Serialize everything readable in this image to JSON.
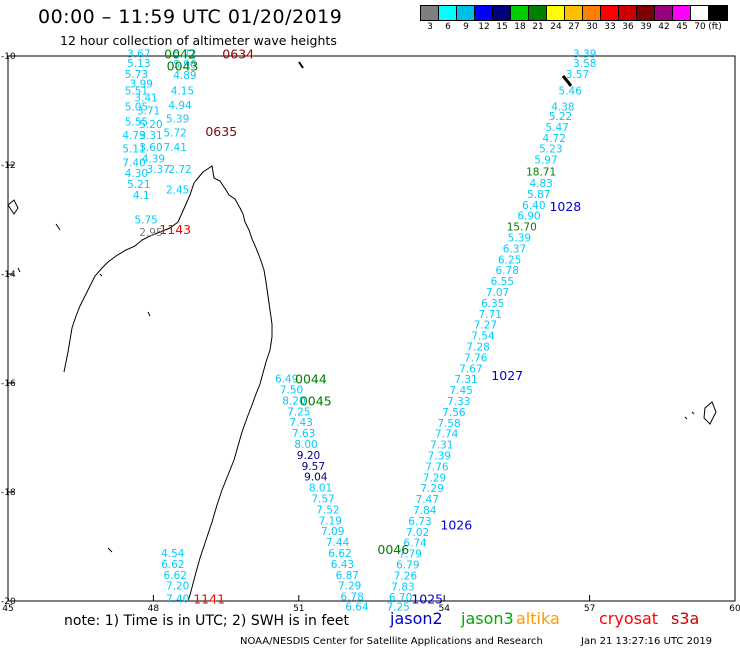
{
  "header": {
    "title": "00:00 – 11:59 UTC 01/20/2019",
    "subtitle": "12 hour collection of altimeter wave heights"
  },
  "colorbar": {
    "unit_label": "(ft)",
    "bins": [
      {
        "color": "#7f7f7f",
        "label": "3"
      },
      {
        "color": "#00ffff",
        "label": "6"
      },
      {
        "color": "#00bfe6",
        "label": "9"
      },
      {
        "color": "#0000ff",
        "label": "12"
      },
      {
        "color": "#00007f",
        "label": "15"
      },
      {
        "color": "#00cc00",
        "label": "18"
      },
      {
        "color": "#007f00",
        "label": "21"
      },
      {
        "color": "#ffff00",
        "label": "24"
      },
      {
        "color": "#ffbf00",
        "label": "27"
      },
      {
        "color": "#ff7f00",
        "label": "30"
      },
      {
        "color": "#ff0000",
        "label": "33"
      },
      {
        "color": "#cc0000",
        "label": "36"
      },
      {
        "color": "#7f0000",
        "label": "39"
      },
      {
        "color": "#99007f",
        "label": "42"
      },
      {
        "color": "#ff00ff",
        "label": "45"
      },
      {
        "color": "#ffffff",
        "label": "70"
      },
      {
        "color": "#000000",
        "label": ""
      }
    ]
  },
  "map": {
    "lat_ticks": [
      "-10",
      "-12",
      "-14",
      "-16",
      "-18",
      "-20"
    ],
    "lon_ticks": [
      "45",
      "48",
      "51",
      "54",
      "57",
      "60"
    ],
    "colors": {
      "cyan": "#00ccff",
      "grey": "#7f7f7f",
      "navy": "#00007f",
      "green": "#007f00",
      "darkred": "#8b0000",
      "red": "#ff0000",
      "blue": "#0000cc",
      "lightgreen": "#00aa00"
    },
    "time_labels": [
      {
        "text": "0042",
        "color": "green",
        "lon": 48.55,
        "lat": -9.95
      },
      {
        "text": "0043",
        "color": "green",
        "lon": 48.6,
        "lat": -10.17
      },
      {
        "text": "0634",
        "color": "darkred",
        "lon": 49.75,
        "lat": -9.95
      },
      {
        "text": "0635",
        "color": "darkred",
        "lon": 49.4,
        "lat": -11.38
      },
      {
        "text": "1143",
        "color": "red",
        "lon": 48.45,
        "lat": -13.17
      },
      {
        "text": "0044",
        "color": "green",
        "lon": 51.25,
        "lat": -15.92
      },
      {
        "text": "0045",
        "color": "green",
        "lon": 51.35,
        "lat": -16.32
      },
      {
        "text": "1028",
        "color": "blue",
        "lon": 56.5,
        "lat": -12.75
      },
      {
        "text": "1027",
        "color": "blue",
        "lon": 55.3,
        "lat": -15.85
      },
      {
        "text": "1026",
        "color": "blue",
        "lon": 54.25,
        "lat": -18.6
      },
      {
        "text": "0046",
        "color": "green",
        "lon": 52.95,
        "lat": -19.05
      },
      {
        "text": "1025",
        "color": "blue",
        "lon": 53.65,
        "lat": -19.95
      },
      {
        "text": "1141",
        "color": "red",
        "lon": 49.15,
        "lat": -19.95
      }
    ],
    "tracks": [
      {
        "color": "cyan",
        "labels": [
          {
            "text": "3.39",
            "lon": 56.9,
            "lat": -9.95
          },
          {
            "text": "3.58",
            "lon": 56.9,
            "lat": -10.13
          },
          {
            "text": "3.57",
            "lon": 56.75,
            "lat": -10.33
          },
          {
            "text": "5.46",
            "lon": 56.6,
            "lat": -10.63
          },
          {
            "text": "4.38",
            "lon": 56.45,
            "lat": -10.93
          },
          {
            "text": "5.22",
            "lon": 56.4,
            "lat": -11.1
          },
          {
            "text": "5.47",
            "lon": 56.33,
            "lat": -11.3
          },
          {
            "text": "4.72",
            "lon": 56.27,
            "lat": -11.5
          },
          {
            "text": "5.23",
            "lon": 56.2,
            "lat": -11.7
          },
          {
            "text": "5.97",
            "lon": 56.1,
            "lat": -11.9
          }
        ]
      },
      {
        "color": "green",
        "labels": [
          {
            "text": "18.71",
            "lon": 56.0,
            "lat": -12.12
          }
        ]
      },
      {
        "color": "cyan",
        "labels": [
          {
            "text": "4.83",
            "lon": 56.0,
            "lat": -12.33
          },
          {
            "text": "5.87",
            "lon": 55.95,
            "lat": -12.53
          },
          {
            "text": "6.40",
            "lon": 55.85,
            "lat": -12.73
          },
          {
            "text": "6.90",
            "lon": 55.75,
            "lat": -12.93
          }
        ]
      },
      {
        "color": "green",
        "labels": [
          {
            "text": "15.70",
            "lon": 55.6,
            "lat": -13.13
          }
        ]
      },
      {
        "color": "cyan",
        "labels": [
          {
            "text": "5.39",
            "lon": 55.55,
            "lat": -13.33
          },
          {
            "text": "6.37",
            "lon": 55.45,
            "lat": -13.53
          },
          {
            "text": "6.25",
            "lon": 55.35,
            "lat": -13.73
          },
          {
            "text": "6.78",
            "lon": 55.3,
            "lat": -13.93
          },
          {
            "text": "6.55",
            "lon": 55.2,
            "lat": -14.13
          },
          {
            "text": "7.07",
            "lon": 55.1,
            "lat": -14.33
          },
          {
            "text": "6.35",
            "lon": 55.0,
            "lat": -14.53
          },
          {
            "text": "7.71",
            "lon": 54.95,
            "lat": -14.73
          },
          {
            "text": "7.27",
            "lon": 54.85,
            "lat": -14.93
          },
          {
            "text": "7.54",
            "lon": 54.8,
            "lat": -15.13
          },
          {
            "text": "7.28",
            "lon": 54.7,
            "lat": -15.33
          },
          {
            "text": "7.76",
            "lon": 54.65,
            "lat": -15.53
          },
          {
            "text": "7.67",
            "lon": 54.55,
            "lat": -15.73
          },
          {
            "text": "7.31",
            "lon": 54.45,
            "lat": -15.93
          },
          {
            "text": "7.45",
            "lon": 54.35,
            "lat": -16.13
          },
          {
            "text": "7.33",
            "lon": 54.3,
            "lat": -16.33
          },
          {
            "text": "7.56",
            "lon": 54.2,
            "lat": -16.53
          },
          {
            "text": "7.58",
            "lon": 54.1,
            "lat": -16.73
          },
          {
            "text": "7.74",
            "lon": 54.05,
            "lat": -16.93
          },
          {
            "text": "7.31",
            "lon": 53.95,
            "lat": -17.13
          },
          {
            "text": "7.39",
            "lon": 53.9,
            "lat": -17.33
          },
          {
            "text": "7.76",
            "lon": 53.85,
            "lat": -17.53
          },
          {
            "text": "7.29",
            "lon": 53.8,
            "lat": -17.73
          },
          {
            "text": "7.29",
            "lon": 53.75,
            "lat": -17.93
          },
          {
            "text": "7.47",
            "lon": 53.65,
            "lat": -18.13
          },
          {
            "text": "7.84",
            "lon": 53.6,
            "lat": -18.33
          },
          {
            "text": "6.73",
            "lon": 53.5,
            "lat": -18.53
          },
          {
            "text": "7.02",
            "lon": 53.45,
            "lat": -18.73
          },
          {
            "text": "6.74",
            "lon": 53.4,
            "lat": -18.93
          },
          {
            "text": "7.79",
            "lon": 53.3,
            "lat": -19.13
          },
          {
            "text": "6.79",
            "lon": 53.25,
            "lat": -19.33
          },
          {
            "text": "7.26",
            "lon": 53.2,
            "lat": -19.53
          },
          {
            "text": "7.83",
            "lon": 53.15,
            "lat": -19.73
          },
          {
            "text": "6.70",
            "lon": 53.1,
            "lat": -19.93
          },
          {
            "text": "7.25",
            "lon": 53.05,
            "lat": -20.1
          }
        ]
      },
      {
        "color": "cyan",
        "labels": [
          {
            "text": "6.49",
            "lon": 50.75,
            "lat": -15.92
          },
          {
            "text": "7.50",
            "lon": 50.85,
            "lat": -16.12
          },
          {
            "text": "8.20",
            "lon": 50.9,
            "lat": -16.32
          },
          {
            "text": "7.25",
            "lon": 51.0,
            "lat": -16.52
          },
          {
            "text": "7.43",
            "lon": 51.05,
            "lat": -16.72
          },
          {
            "text": "7.63",
            "lon": 51.1,
            "lat": -16.92
          },
          {
            "text": "8.00",
            "lon": 51.15,
            "lat": -17.12
          }
        ]
      },
      {
        "color": "navy",
        "labels": [
          {
            "text": "9.20",
            "lon": 51.2,
            "lat": -17.32
          },
          {
            "text": "9.57",
            "lon": 51.3,
            "lat": -17.52
          },
          {
            "text": "9.04",
            "lon": 51.35,
            "lat": -17.72
          }
        ]
      },
      {
        "color": "cyan",
        "labels": [
          {
            "text": "8.01",
            "lon": 51.45,
            "lat": -17.92
          },
          {
            "text": "7.57",
            "lon": 51.5,
            "lat": -18.12
          },
          {
            "text": "7.52",
            "lon": 51.6,
            "lat": -18.32
          },
          {
            "text": "7.19",
            "lon": 51.65,
            "lat": -18.52
          },
          {
            "text": "7.09",
            "lon": 51.7,
            "lat": -18.72
          },
          {
            "text": "7.44",
            "lon": 51.8,
            "lat": -18.92
          },
          {
            "text": "6.62",
            "lon": 51.85,
            "lat": -19.12
          },
          {
            "text": "6.43",
            "lon": 51.9,
            "lat": -19.32
          },
          {
            "text": "6.87",
            "lon": 52.0,
            "lat": -19.52
          },
          {
            "text": "7.29",
            "lon": 52.05,
            "lat": -19.72
          },
          {
            "text": "6.78",
            "lon": 52.1,
            "lat": -19.92
          },
          {
            "text": "6.64",
            "lon": 52.2,
            "lat": -20.1
          }
        ]
      },
      {
        "color": "cyan",
        "labels": [
          {
            "text": "4.54",
            "lon": 48.4,
            "lat": -19.12
          },
          {
            "text": "6.62",
            "lon": 48.4,
            "lat": -19.32
          },
          {
            "text": "6.62",
            "lon": 48.45,
            "lat": -19.52
          },
          {
            "text": "7.20",
            "lon": 48.5,
            "lat": -19.72
          },
          {
            "text": "7.40",
            "lon": 48.5,
            "lat": -19.95
          }
        ]
      },
      {
        "color": "cyan",
        "labels": [
          {
            "text": "3.67",
            "lon": 47.7,
            "lat": -9.95
          },
          {
            "text": "5.13",
            "lon": 47.7,
            "lat": -10.13
          },
          {
            "text": "5.73",
            "lon": 47.65,
            "lat": -10.33
          },
          {
            "text": "3.99",
            "lon": 47.75,
            "lat": -10.5
          },
          {
            "text": "5.51",
            "lon": 47.65,
            "lat": -10.63
          },
          {
            "text": "3.41",
            "lon": 47.85,
            "lat": -10.76
          },
          {
            "text": "5.05",
            "lon": 47.65,
            "lat": -10.93
          },
          {
            "text": "3.71",
            "lon": 47.9,
            "lat": -11.0
          },
          {
            "text": "5.55",
            "lon": 47.65,
            "lat": -11.2
          },
          {
            "text": "5.20",
            "lon": 47.95,
            "lat": -11.25
          },
          {
            "text": "4.79",
            "lon": 47.6,
            "lat": -11.45
          },
          {
            "text": "3.31",
            "lon": 47.95,
            "lat": -11.45
          },
          {
            "text": "5.11",
            "lon": 47.6,
            "lat": -11.7
          },
          {
            "text": "3.60",
            "lon": 47.95,
            "lat": -11.67
          },
          {
            "text": "7.40",
            "lon": 47.6,
            "lat": -11.95
          },
          {
            "text": "4.39",
            "lon": 48.0,
            "lat": -11.88
          },
          {
            "text": "3.37",
            "lon": 48.1,
            "lat": -12.07
          },
          {
            "text": "4.30",
            "lon": 47.65,
            "lat": -12.15
          },
          {
            "text": "5.21",
            "lon": 47.7,
            "lat": -12.35
          },
          {
            "text": "4.1",
            "lon": 47.75,
            "lat": -12.55
          },
          {
            "text": "5.75",
            "lon": 47.85,
            "lat": -13.0
          },
          {
            "text": "5.72",
            "lon": 48.65,
            "lat": -9.95
          },
          {
            "text": "5.96",
            "lon": 48.65,
            "lat": -10.15
          },
          {
            "text": "4.89",
            "lon": 48.65,
            "lat": -10.35
          },
          {
            "text": "4.15",
            "lon": 48.6,
            "lat": -10.63
          },
          {
            "text": "4.94",
            "lon": 48.55,
            "lat": -10.9
          },
          {
            "text": "5.39",
            "lon": 48.5,
            "lat": -11.15
          },
          {
            "text": "5.72",
            "lon": 48.45,
            "lat": -11.4
          },
          {
            "text": "7.41",
            "lon": 48.45,
            "lat": -11.67
          },
          {
            "text": "2.72",
            "lon": 48.55,
            "lat": -12.07
          },
          {
            "text": "2.45",
            "lon": 48.5,
            "lat": -12.45
          }
        ]
      },
      {
        "color": "grey",
        "labels": [
          {
            "text": "2.95",
            "lon": 47.95,
            "lat": -13.23
          }
        ]
      }
    ]
  },
  "footer": {
    "note": "note:  1) Time is in UTC;  2) SWH is in feet",
    "legend": [
      {
        "label": "jason2",
        "color": "#0000cc"
      },
      {
        "label": "jason3",
        "color": "#00aa00"
      },
      {
        "label": "altika",
        "color": "#ff9900"
      },
      {
        "label": "cryosat",
        "color": "#ff0000"
      },
      {
        "label": "s3a",
        "color": "#cc0000"
      }
    ],
    "credit": "NOAA/NESDIS Center for Satellite Applications and Research",
    "timestamp": "Jan 21 13:27:16 UTC 2019"
  }
}
